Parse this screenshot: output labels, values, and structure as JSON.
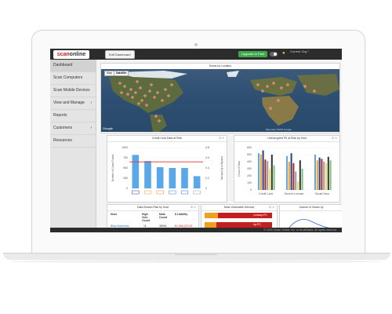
{
  "colors": {
    "accent": "#cc2222",
    "bar_blue": "#5aa8e8",
    "threshold_red": "#e03030",
    "upgrade_green": "#3ea84a"
  },
  "header": {
    "logo_part1": "scan",
    "logo_part2": "online",
    "edit_dashboard": "Edit Dashboard",
    "upgrade_button": "Upgrade to Paid",
    "current_org": "Current Org *"
  },
  "sidebar": {
    "items": [
      {
        "label": "Dashboard",
        "active": true,
        "chevron": false
      },
      {
        "label": "Scan Computers",
        "active": false,
        "chevron": false
      },
      {
        "label": "Scan Mobile Devices",
        "active": false,
        "chevron": false
      },
      {
        "label": "View and Manage",
        "active": false,
        "chevron": true
      },
      {
        "label": "Reports",
        "active": false,
        "chevron": false
      },
      {
        "label": "Customers",
        "active": false,
        "chevron": true
      },
      {
        "label": "Resources",
        "active": false,
        "chevron": false
      }
    ],
    "chevron_glyph": "›"
  },
  "map_panel": {
    "title": "Scans by Location",
    "btn_map": "Map",
    "btn_satellite": "Satellite",
    "credit": "Map data ©2015 Google",
    "brand": "Google"
  },
  "cc_panel": {
    "title": "Credit Card Data at Risk",
    "ylabel": "Number of Cards Found",
    "ylabel2": "Liability in $ (millions)"
  },
  "pii_panel": {
    "title": "Unencrypted PII at Risk by Host",
    "ylabel": "Count of Data"
  },
  "breach_panel": {
    "title": "Data Breach Risk by Host",
    "columns": [
      "Host",
      "High Vuln Count",
      "Data Count",
      "$ Liability"
    ],
    "rows": [
      [
        "Bliss-Machines",
        "11",
        "38991",
        "$1,066,232.00"
      ]
    ]
  },
  "vuln_panel": {
    "title": "Most Vulnerable Devices",
    "devices": [
      {
        "label": "conway-PC",
        "orange": 0.2,
        "red": 0.8
      },
      {
        "label": "hp-PC",
        "orange": 0.18,
        "red": 0.82
      }
    ]
  },
  "volume_panel": {
    "title": "Volume of Scans by"
  },
  "footer": {
    "text": "© 2015, iScan Online, Inc. or its affiliates. All rights reserved."
  },
  "panel_controls": "⚙ ✕",
  "chart_data": [
    {
      "type": "bar",
      "title": "Credit Card Data at Risk",
      "categories": [
        "Visa",
        "MasterCard",
        "Discover",
        "Amex",
        "JCB",
        "Diners"
      ],
      "values": [
        820,
        670,
        520,
        500,
        500,
        300
      ],
      "y_ticks": [
        0,
        250,
        500,
        750,
        1000
      ],
      "y2_ticks": [
        0,
        0.2,
        0.4,
        0.6,
        0.8
      ],
      "threshold": 650,
      "ylim": [
        0,
        1000
      ]
    },
    {
      "type": "bar",
      "title": "Unencrypted PII at Risk by Host",
      "categories": [
        "Credit Card",
        "Driver's License",
        "Social Secu"
      ],
      "series_colors": [
        "#5aa8e8",
        "#f0a020",
        "#2e3a8c",
        "#a03030",
        "#9a9a9a",
        "#f0e060",
        "#333333",
        "#7cc07c"
      ],
      "groups": [
        [
          520,
          500,
          560,
          430,
          410,
          300,
          500,
          350
        ],
        [
          480,
          400,
          520,
          380,
          260,
          120,
          420,
          300
        ],
        [
          500,
          420,
          460,
          440,
          400,
          380,
          470,
          420
        ]
      ],
      "y_ticks": [
        0,
        100,
        200,
        300,
        400,
        500,
        600
      ],
      "ylim": [
        0,
        600
      ]
    }
  ]
}
